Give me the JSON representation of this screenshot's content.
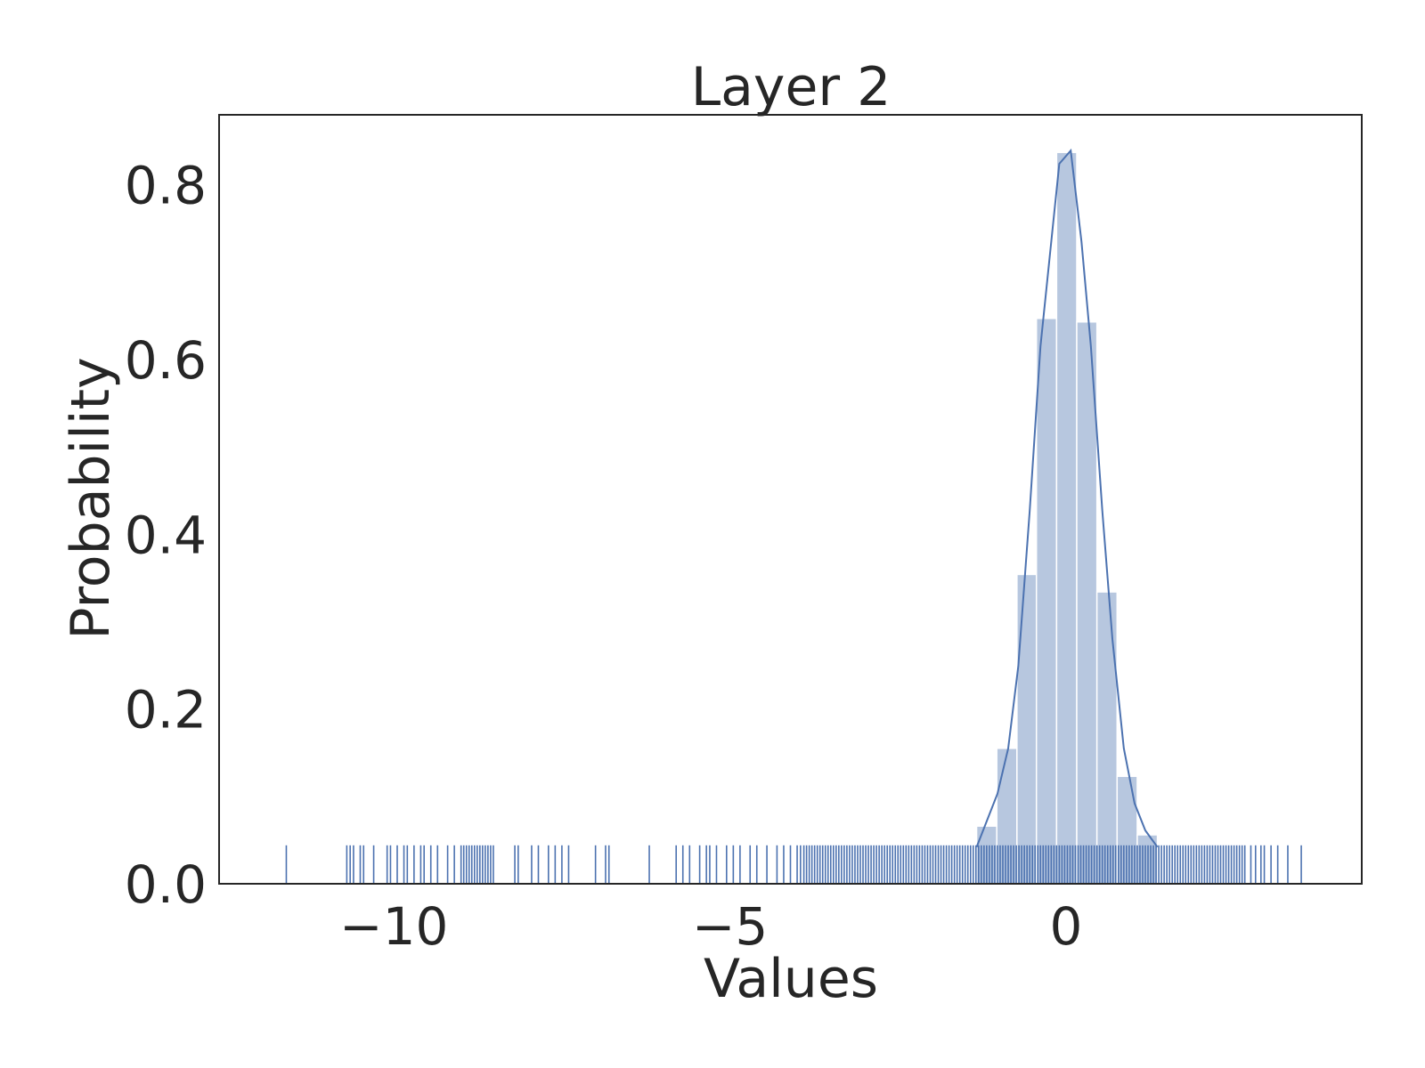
{
  "chart_data": {
    "type": "histogram",
    "title": "Layer 2",
    "xlabel": "Values",
    "ylabel": "Probability",
    "color": "#4c72b0",
    "bins": [
      -1.33,
      -1.03,
      -0.73,
      -0.44,
      -0.14,
      0.16,
      0.46,
      0.76,
      1.06,
      1.36
    ],
    "values": [
      0.066,
      0.155,
      0.354,
      0.647,
      0.837,
      0.643,
      0.334,
      0.123,
      0.056
    ],
    "kde": {
      "color": "#4c72b0",
      "x": [
        -1.33,
        -1.02,
        -0.86,
        -0.71,
        -0.54,
        -0.38,
        -0.1,
        0.07,
        0.23,
        0.37,
        0.54,
        0.69,
        0.86,
        1.02,
        1.18,
        1.36
      ],
      "y": [
        0.042,
        0.103,
        0.155,
        0.249,
        0.427,
        0.615,
        0.824,
        0.839,
        0.735,
        0.615,
        0.427,
        0.28,
        0.155,
        0.092,
        0.061,
        0.042
      ]
    },
    "rug": {
      "color": "#4c72b0",
      "values": [
        -11.6,
        -10.7,
        -10.65,
        -10.6,
        -10.5,
        -10.45,
        -10.3,
        -10.1,
        -10.05,
        -9.95,
        -9.85,
        -9.8,
        -9.7,
        -9.6,
        -9.55,
        -9.45,
        -9.35,
        -9.2,
        -9.1,
        -9.0,
        -8.96,
        -8.92,
        -8.88,
        -8.84,
        -8.8,
        -8.76,
        -8.72,
        -8.68,
        -8.64,
        -8.6,
        -8.56,
        -8.52,
        -8.2,
        -8.15,
        -7.95,
        -7.85,
        -7.7,
        -7.6,
        -7.5,
        -7.4,
        -7.0,
        -6.85,
        -6.8,
        -6.2,
        -5.8,
        -5.7,
        -5.6,
        -5.45,
        -5.35,
        -5.3,
        -5.2,
        -5.05,
        -4.95,
        -4.85,
        -4.7,
        -4.6,
        -4.45,
        -4.3,
        -4.2,
        -4.1,
        -4.0,
        -3.95,
        -3.9,
        -3.86,
        -3.82,
        -3.78,
        -3.74,
        -3.7,
        -3.66,
        -3.62,
        -3.58,
        -3.54,
        -3.5,
        -3.46,
        -3.42,
        -3.38,
        -3.34,
        -3.3,
        -3.26,
        -3.22,
        -3.18,
        -3.14,
        -3.1,
        -3.06,
        -3.02,
        -2.98,
        -2.94,
        -2.9,
        -2.86,
        -2.82,
        -2.78,
        -2.74,
        -2.7,
        -2.66,
        -2.62,
        -2.58,
        -2.54,
        -2.5,
        -2.46,
        -2.42,
        -2.38,
        -2.34,
        -2.3,
        -2.26,
        -2.22,
        -2.18,
        -2.14,
        -2.1,
        -2.06,
        -2.02,
        -1.98,
        -1.94,
        -1.9,
        -1.86,
        -1.82,
        -1.78,
        -1.74,
        -1.7,
        -1.66,
        -1.62,
        -1.58,
        -1.54,
        -1.5,
        -1.46,
        -1.42,
        -1.38,
        -1.34,
        -1.3,
        -1.26,
        -1.22,
        -1.18,
        -1.14,
        -1.1,
        -1.06,
        -1.02,
        -0.98,
        -0.94,
        -0.9,
        -0.86,
        -0.82,
        -0.78,
        -0.74,
        -0.7,
        -0.66,
        -0.62,
        -0.58,
        -0.54,
        -0.5,
        -0.46,
        -0.42,
        -0.38,
        -0.34,
        -0.3,
        -0.26,
        -0.22,
        -0.18,
        -0.14,
        -0.1,
        -0.06,
        -0.02,
        0.02,
        0.06,
        0.1,
        0.14,
        0.18,
        0.22,
        0.26,
        0.3,
        0.34,
        0.38,
        0.42,
        0.46,
        0.5,
        0.54,
        0.58,
        0.62,
        0.66,
        0.7,
        0.74,
        0.78,
        0.82,
        0.86,
        0.9,
        0.94,
        0.98,
        1.02,
        1.06,
        1.1,
        1.14,
        1.18,
        1.22,
        1.26,
        1.3,
        1.34,
        1.38,
        1.42,
        1.46,
        1.5,
        1.54,
        1.58,
        1.62,
        1.66,
        1.7,
        1.74,
        1.78,
        1.82,
        1.86,
        1.9,
        1.94,
        1.98,
        2.02,
        2.06,
        2.1,
        2.14,
        2.18,
        2.22,
        2.26,
        2.3,
        2.34,
        2.38,
        2.42,
        2.46,
        2.5,
        2.54,
        2.58,
        2.62,
        2.66,
        2.75,
        2.82,
        2.9,
        2.95,
        3.05,
        3.15,
        3.3,
        3.5
      ]
    },
    "xlim": [
      -12.6,
      4.4
    ],
    "ylim": [
      0,
      0.88
    ],
    "xticks": [
      {
        "value": -10,
        "label": "−10"
      },
      {
        "value": -5,
        "label": "−5"
      },
      0
    ],
    "yticks": [
      {
        "value": 0,
        "label": "0.0"
      },
      0.2,
      0.4,
      0.6,
      0.8
    ]
  }
}
